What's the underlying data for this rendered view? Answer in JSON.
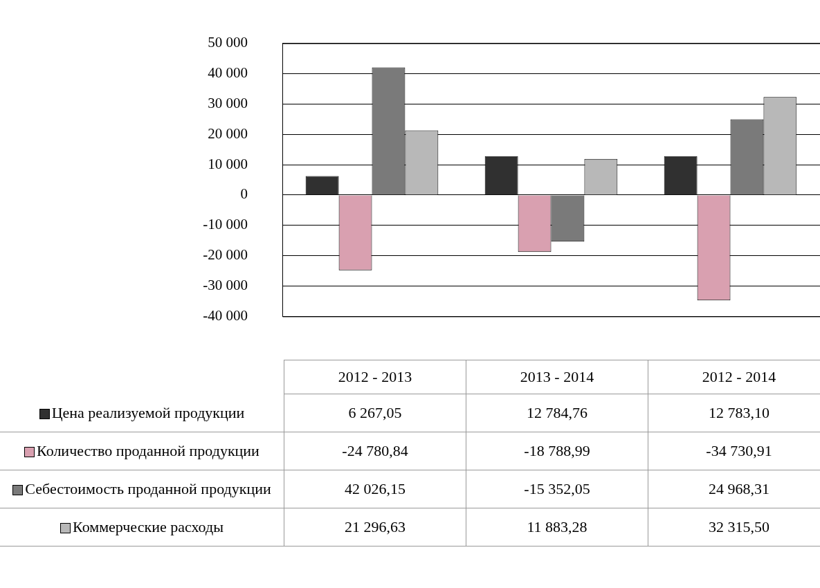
{
  "chart_data": {
    "type": "bar",
    "categories": [
      "2012 - 2013",
      "2013 - 2014",
      "2012 - 2014"
    ],
    "series": [
      {
        "name": "Цена реализуемой продукции",
        "color": "#303030",
        "values": [
          6267.05,
          12784.76,
          12783.1
        ],
        "value_labels": [
          "6 267,05",
          "12 784,76",
          "12 783,10"
        ]
      },
      {
        "name": "Количество проданной продукции",
        "color": "#d9a0b0",
        "values": [
          -24780.84,
          -18788.99,
          -34730.91
        ],
        "value_labels": [
          "-24 780,84",
          "-18 788,99",
          "-34 730,91"
        ]
      },
      {
        "name": "Себестоимость проданной продукции",
        "color": "#7a7a7a",
        "values": [
          42026.15,
          -15352.05,
          24968.31
        ],
        "value_labels": [
          "42 026,15",
          "-15 352,05",
          "24 968,31"
        ]
      },
      {
        "name": "Коммерческие расходы",
        "color": "#b8b8b8",
        "values": [
          21296.63,
          11883.28,
          32315.5
        ],
        "value_labels": [
          "21 296,63",
          "11 883,28",
          "32 315,50"
        ]
      }
    ],
    "ylim": [
      -40000,
      50000
    ],
    "yticks": [
      {
        "value": -40000,
        "label": "-40 000"
      },
      {
        "value": -30000,
        "label": "-30 000"
      },
      {
        "value": -20000,
        "label": "-20 000"
      },
      {
        "value": -10000,
        "label": "-10 000"
      },
      0,
      {
        "value": 10000,
        "label": "10 000"
      },
      {
        "value": 20000,
        "label": "20 000"
      },
      {
        "value": 30000,
        "label": "30 000"
      },
      {
        "value": 40000,
        "label": "40 000"
      },
      {
        "value": 50000,
        "label": "50 000"
      }
    ],
    "grid": "y",
    "legend": "bottom"
  }
}
